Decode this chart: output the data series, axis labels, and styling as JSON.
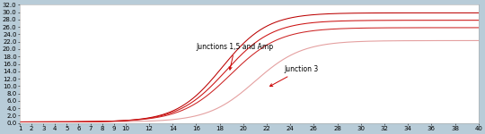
{
  "background_color": "#b8ccd8",
  "plot_bg": "#ffffff",
  "xlim": [
    1,
    40
  ],
  "ylim": [
    0.0,
    32.0
  ],
  "xticks": [
    1,
    2,
    3,
    4,
    5,
    6,
    7,
    8,
    9,
    10,
    12,
    14,
    16,
    18,
    20,
    22,
    24,
    26,
    28,
    30,
    32,
    34,
    36,
    38,
    40
  ],
  "yticks": [
    0.0,
    2.0,
    4.0,
    6.0,
    8.0,
    10.0,
    12.0,
    14.0,
    16.0,
    18.0,
    20.0,
    22.0,
    24.0,
    26.0,
    28.0,
    30.0,
    32.0
  ],
  "ytick_labels": [
    "0.0",
    "2.0",
    "4.0",
    "6.0",
    "8.0",
    "10.0",
    "12.0",
    "14.0",
    "16.0",
    "18.0",
    "20.0",
    "22.0",
    "24.0",
    "26.0",
    "28.0",
    "30.0",
    "32.0"
  ],
  "label_junc15amp": "Junctions 1,5 and Amp",
  "label_junc3": "Junction 3",
  "arrow_color": "#cc0000",
  "font_size": 5.5
}
